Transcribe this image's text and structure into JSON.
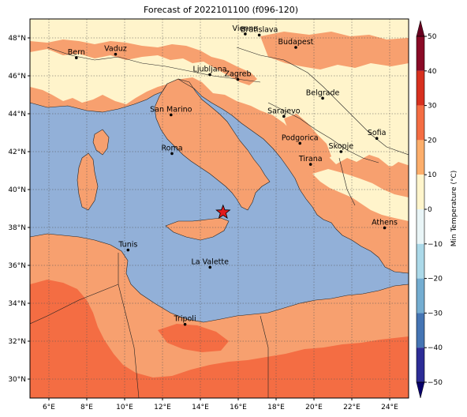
{
  "title": "Forecast of 2022101100 (f096-120)",
  "map": {
    "lon_range": [
      5,
      25
    ],
    "lat_range": [
      29,
      49
    ],
    "x_ticks": [
      {
        "value": 6,
        "label": "6°E"
      },
      {
        "value": 8,
        "label": "8°E"
      },
      {
        "value": 10,
        "label": "10°E"
      },
      {
        "value": 12,
        "label": "12°E"
      },
      {
        "value": 14,
        "label": "14°E"
      },
      {
        "value": 16,
        "label": "16°E"
      },
      {
        "value": 18,
        "label": "18°E"
      },
      {
        "value": 20,
        "label": "20°E"
      },
      {
        "value": 22,
        "label": "22°E"
      },
      {
        "value": 24,
        "label": "24°E"
      }
    ],
    "y_ticks": [
      {
        "value": 48,
        "label": "48°N"
      },
      {
        "value": 46,
        "label": "46°N"
      },
      {
        "value": 44,
        "label": "44°N"
      },
      {
        "value": 42,
        "label": "42°N"
      },
      {
        "value": 40,
        "label": "40°N"
      },
      {
        "value": 38,
        "label": "38°N"
      },
      {
        "value": 36,
        "label": "36°N"
      },
      {
        "value": 34,
        "label": "34°N"
      },
      {
        "value": 32,
        "label": "32°N"
      },
      {
        "value": 30,
        "label": "30°N"
      }
    ],
    "grid": true,
    "marker": {
      "symbol": "red-star",
      "lon": 15.2,
      "lat": 38.8,
      "color": "#e31a1c"
    },
    "cities": [
      {
        "name": "Bern",
        "lon": 7.45,
        "lat": 46.95
      },
      {
        "name": "Vaduz",
        "lon": 9.52,
        "lat": 47.14
      },
      {
        "name": "Vienna",
        "lon": 16.37,
        "lat": 48.21
      },
      {
        "name": "Bratislava",
        "lon": 17.11,
        "lat": 48.15
      },
      {
        "name": "Budapest",
        "lon": 19.04,
        "lat": 47.5
      },
      {
        "name": "Ljubljana",
        "lon": 14.5,
        "lat": 46.06
      },
      {
        "name": "Zagreb",
        "lon": 15.98,
        "lat": 45.81
      },
      {
        "name": "Belgrade",
        "lon": 20.46,
        "lat": 44.82
      },
      {
        "name": "San Marino",
        "lon": 12.45,
        "lat": 43.94
      },
      {
        "name": "Sarajevo",
        "lon": 18.41,
        "lat": 43.86
      },
      {
        "name": "Sofia",
        "lon": 23.32,
        "lat": 42.7
      },
      {
        "name": "Roma",
        "lon": 12.5,
        "lat": 41.9
      },
      {
        "name": "Podgorica",
        "lon": 19.26,
        "lat": 42.44
      },
      {
        "name": "Skopje",
        "lon": 21.43,
        "lat": 42.0
      },
      {
        "name": "Tirana",
        "lon": 19.82,
        "lat": 41.33
      },
      {
        "name": "Athens",
        "lon": 23.73,
        "lat": 37.98
      },
      {
        "name": "Tunis",
        "lon": 10.18,
        "lat": 36.81
      },
      {
        "name": "La Valette",
        "lon": 14.51,
        "lat": 35.9
      },
      {
        "name": "Tripoli",
        "lon": 13.19,
        "lat": 32.89
      }
    ]
  },
  "colorbar": {
    "label": "Min Temperature (°C)",
    "ticks": [
      "50",
      "40",
      "30",
      "20",
      "10",
      "0",
      "−10",
      "−20",
      "−30",
      "−40",
      "−50"
    ],
    "bands": [
      {
        "from": 40,
        "to": 50,
        "color": "#8a0a26"
      },
      {
        "from": 30,
        "to": 40,
        "color": "#d7301f"
      },
      {
        "from": 20,
        "to": 30,
        "color": "#f46d43"
      },
      {
        "from": 10,
        "to": 20,
        "color": "#fdae6b"
      },
      {
        "from": 0,
        "to": 10,
        "color": "#fff5cc"
      },
      {
        "from": -10,
        "to": 0,
        "color": "#e9f5f7"
      },
      {
        "from": -20,
        "to": -10,
        "color": "#abd9e9"
      },
      {
        "from": -30,
        "to": -20,
        "color": "#74add1"
      },
      {
        "from": -40,
        "to": -30,
        "color": "#4575b4"
      },
      {
        "from": -50,
        "to": -40,
        "color": "#2c2c96"
      }
    ]
  },
  "colors": {
    "sea": "#92b0d8",
    "warm": "#f7a06f",
    "mild": "#fff4cb",
    "hot": "#f46d43"
  }
}
